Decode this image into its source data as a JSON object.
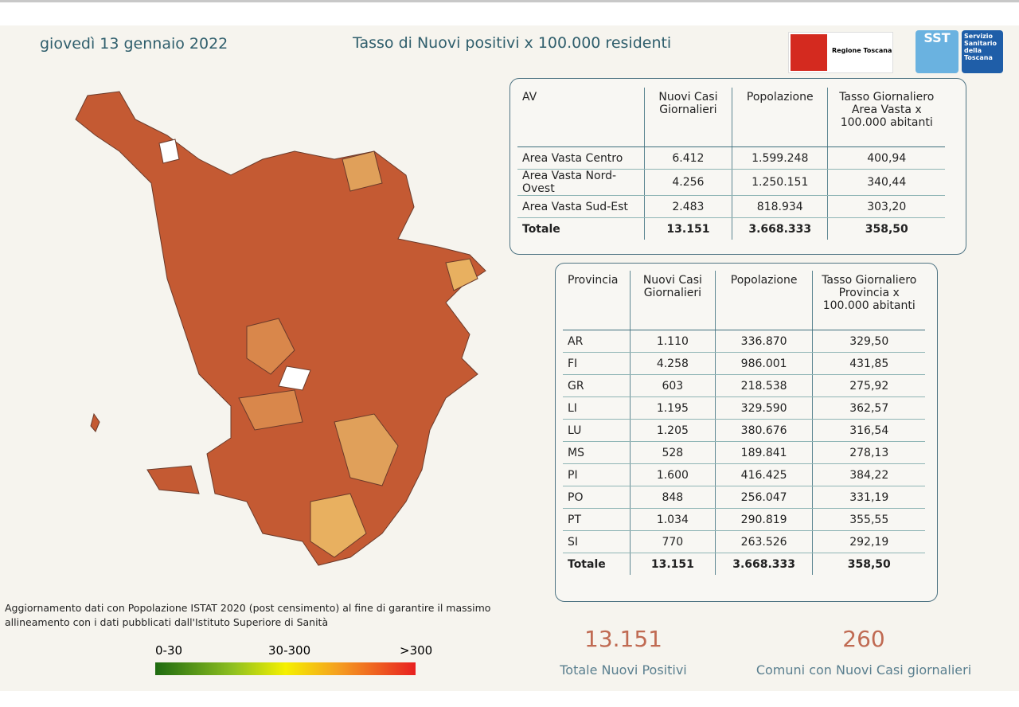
{
  "header": {
    "date": "giovedì 13 gennaio 2022",
    "title": "Tasso di Nuovi positivi x 100.000 residenti",
    "logo_region": "Regione Toscana",
    "logo_sst": "SST",
    "logo_sst_text": "Servizio Sanitario della Toscana"
  },
  "av_table": {
    "columns": [
      "AV",
      "Nuovi Casi Giornalieri",
      "Popolazione",
      "Tasso Giornaliero Area Vasta x 100.000 abitanti"
    ],
    "rows": [
      [
        "Area Vasta Centro",
        "6.412",
        "1.599.248",
        "400,94"
      ],
      [
        "Area Vasta Nord-Ovest",
        "4.256",
        "1.250.151",
        "340,44"
      ],
      [
        "Area Vasta Sud-Est",
        "2.483",
        "818.934",
        "303,20"
      ]
    ],
    "total": [
      "Totale",
      "13.151",
      "3.668.333",
      "358,50"
    ]
  },
  "province_table": {
    "columns": [
      "Provincia",
      "Nuovi Casi Giornalieri",
      "Popolazione",
      "Tasso Giornaliero Provincia x 100.000 abitanti"
    ],
    "rows": [
      [
        "AR",
        "1.110",
        "336.870",
        "329,50"
      ],
      [
        "FI",
        "4.258",
        "986.001",
        "431,85"
      ],
      [
        "GR",
        "603",
        "218.538",
        "275,92"
      ],
      [
        "LI",
        "1.195",
        "329.590",
        "362,57"
      ],
      [
        "LU",
        "1.205",
        "380.676",
        "316,54"
      ],
      [
        "MS",
        "528",
        "189.841",
        "278,13"
      ],
      [
        "PI",
        "1.600",
        "416.425",
        "384,22"
      ],
      [
        "PO",
        "848",
        "256.047",
        "331,19"
      ],
      [
        "PT",
        "1.034",
        "290.819",
        "355,55"
      ],
      [
        "SI",
        "770",
        "263.526",
        "292,19"
      ]
    ],
    "total": [
      "Totale",
      "13.151",
      "3.668.333",
      "358,50"
    ]
  },
  "kpis": [
    {
      "value": "13.151",
      "label": "Totale Nuovi Positivi"
    },
    {
      "value": "260",
      "label": "Comuni con Nuovi Casi giornalieri"
    }
  ],
  "note": "Aggiornamento dati con Popolazione ISTAT 2020 (post censimento) al fine di garantire il massimo allineamento con i dati pubblicati dall'Istituto Superiore di Sanità",
  "legend": [
    "0-30",
    "30-300",
    ">300"
  ]
}
